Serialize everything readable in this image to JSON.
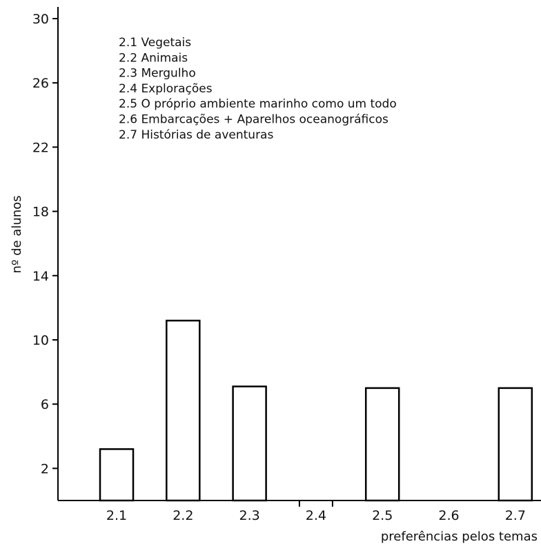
{
  "chart_data": {
    "type": "bar",
    "categories": [
      "2.1",
      "2.2",
      "2.3",
      "2.4",
      "2.5",
      "2.6",
      "2.7"
    ],
    "values": [
      3.2,
      11.2,
      7.1,
      0,
      7.0,
      0,
      7.0
    ],
    "xlabel": "preferências pelos temas",
    "ylabel": "nº de alunos",
    "ylim": [
      0,
      30
    ],
    "yticks": [
      2,
      6,
      10,
      14,
      18,
      22,
      26,
      30
    ],
    "grid": false,
    "legend_position": "top-left",
    "legend": [
      "2.1 Vegetais",
      "2.2 Animais",
      "2.3 Mergulho",
      "2.4 Explorações",
      "2.5 O próprio ambiente marinho como um todo",
      "2.6 Embarcações + Aparelhos oceanográficos",
      "2.7 Histórias de aventuras"
    ],
    "colors": {
      "bar_fill": "#ffffff",
      "bar_stroke": "#000000",
      "axis": "#000000"
    }
  }
}
